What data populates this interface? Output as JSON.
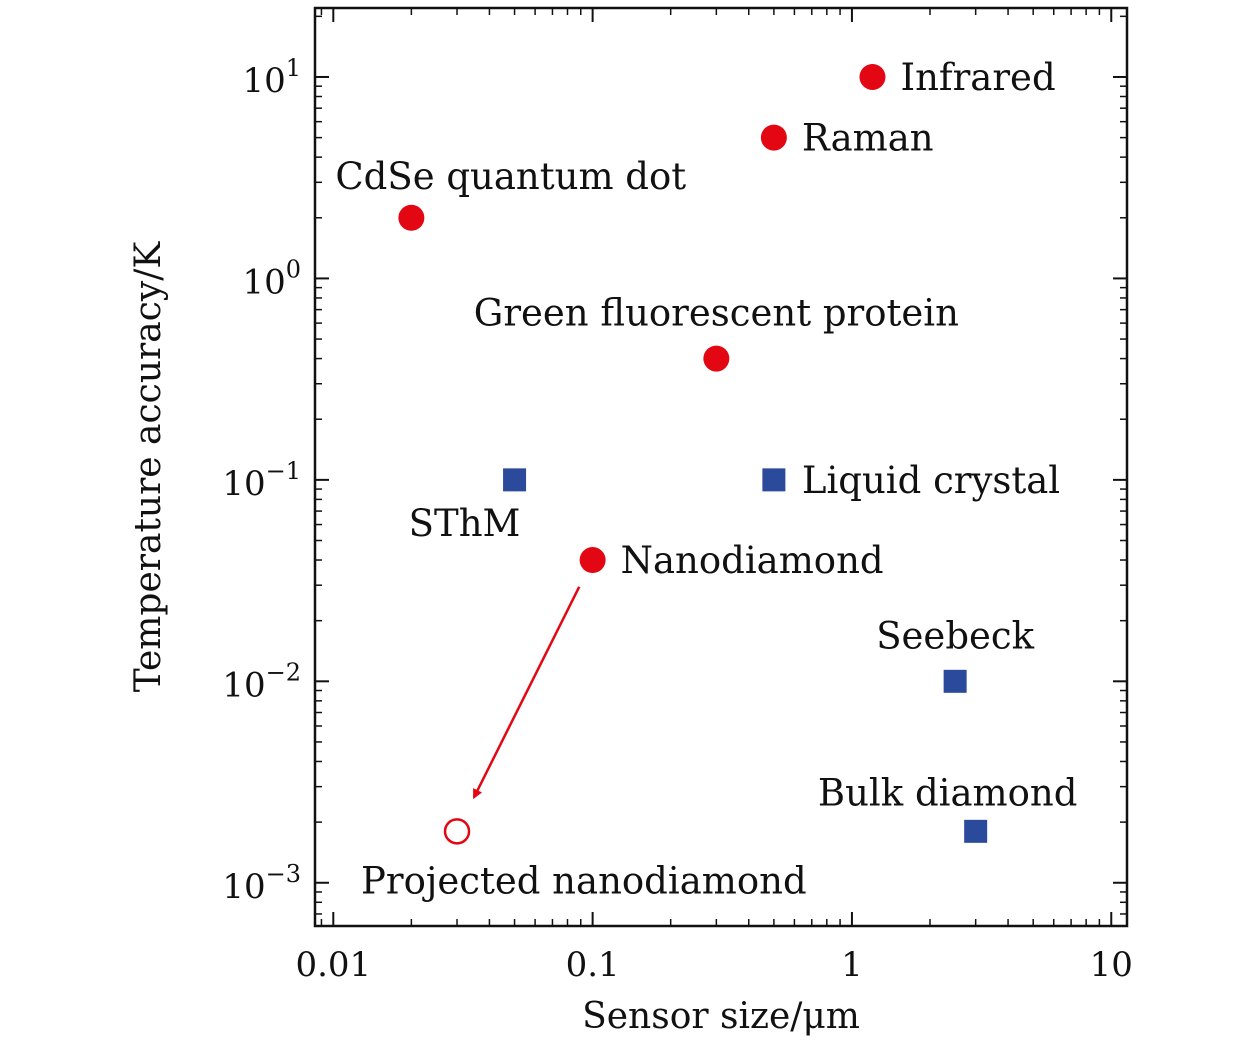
{
  "chart_data": {
    "type": "scatter",
    "xlabel": "Sensor size/μm",
    "ylabel": "Temperature accuracy/K",
    "x_scale": "log",
    "y_scale": "log",
    "xlim": [
      0.0085,
      11.5
    ],
    "ylim": [
      0.00061,
      22
    ],
    "grid": false,
    "x_ticks": [
      {
        "value": 0.01,
        "label": "0.01"
      },
      {
        "value": 0.1,
        "label": "0.1"
      },
      {
        "value": 1,
        "label": "1"
      },
      {
        "value": 10,
        "label": "10"
      }
    ],
    "y_ticks": [
      {
        "value": 0.001,
        "base": "10",
        "exp": "−3"
      },
      {
        "value": 0.01,
        "base": "10",
        "exp": "−2"
      },
      {
        "value": 0.1,
        "base": "10",
        "exp": "−1"
      },
      {
        "value": 1,
        "base": "10",
        "exp": "0"
      },
      {
        "value": 10,
        "base": "10",
        "exp": "1"
      }
    ],
    "colors": {
      "circle": "#e30613",
      "square": "#2b4a9c"
    },
    "points": [
      {
        "label": "Infrared",
        "x": 1.2,
        "y": 10,
        "marker": "circle",
        "label_pos": "right"
      },
      {
        "label": "Raman",
        "x": 0.5,
        "y": 5,
        "marker": "circle",
        "label_pos": "right"
      },
      {
        "label": "CdSe quantum dot",
        "x": 0.02,
        "y": 2,
        "marker": "circle",
        "label_pos": "above-right"
      },
      {
        "label": "Green fluorescent protein",
        "x": 0.3,
        "y": 0.4,
        "marker": "circle",
        "label_pos": "above"
      },
      {
        "label": "SThM",
        "x": 0.05,
        "y": 0.1,
        "marker": "square",
        "label_pos": "below-left"
      },
      {
        "label": "Liquid crystal",
        "x": 0.5,
        "y": 0.1,
        "marker": "square",
        "label_pos": "right"
      },
      {
        "label": "Nanodiamond",
        "x": 0.1,
        "y": 0.04,
        "marker": "circle",
        "label_pos": "right"
      },
      {
        "label": "Seebeck",
        "x": 2.5,
        "y": 0.01,
        "marker": "square",
        "label_pos": "above"
      },
      {
        "label": "Bulk diamond",
        "x": 3,
        "y": 0.0018,
        "marker": "square",
        "label_pos": "above-left"
      },
      {
        "label": "Projected nanodiamond",
        "x": 0.03,
        "y": 0.0018,
        "marker": "open-circle",
        "label_pos": "below-right"
      }
    ],
    "annotations": [
      {
        "type": "arrow",
        "from": "Nanodiamond",
        "to": "Projected nanodiamond",
        "color": "#e30613"
      }
    ]
  }
}
